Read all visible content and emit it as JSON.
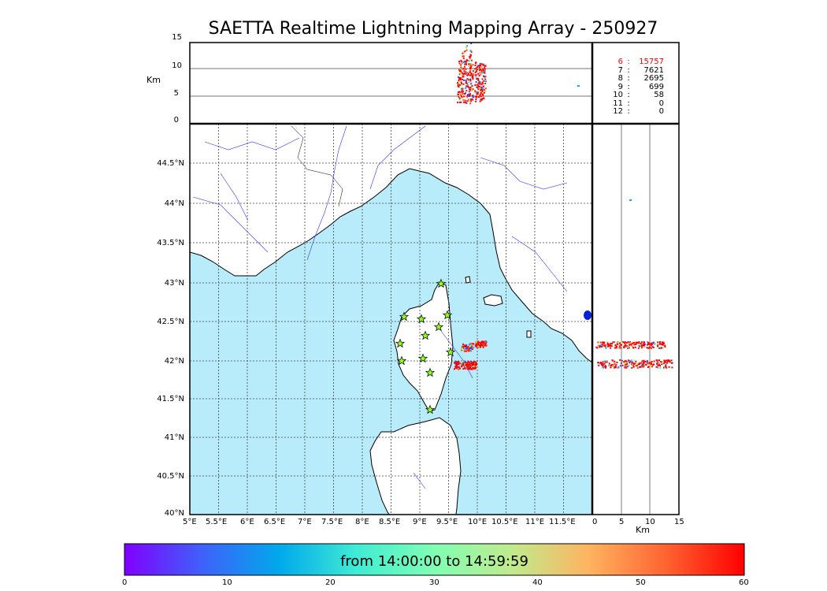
{
  "title": "SAETTA Realtime Lightning Mapping Array - 250927",
  "altitude_panel": {
    "unit_label": "Km",
    "ticks": [
      "15",
      "10",
      "5",
      "0"
    ]
  },
  "lat_ticks": [
    "44.5°N",
    "44°N",
    "43.5°N",
    "43°N",
    "42.5°N",
    "42°N",
    "41.5°N",
    "41°N",
    "40.5°N",
    "40°N"
  ],
  "lon_ticks": [
    "5°E",
    "5.5°E",
    "6°E",
    "6.5°E",
    "7°E",
    "7.5°E",
    "8°E",
    "8.5°E",
    "9°E",
    "9.5°E",
    "10°E",
    "10.5°E",
    "11°E",
    "11.5°E"
  ],
  "side_panel": {
    "unit_label": "Km",
    "ticks": [
      "0",
      "5",
      "10",
      "15"
    ]
  },
  "stations_table": [
    {
      "level": "6",
      "sep": ":",
      "count": "15757",
      "color": "#ff0000"
    },
    {
      "level": "7",
      "sep": ":",
      "count": "7621",
      "color": "#000000"
    },
    {
      "level": "8",
      "sep": ":",
      "count": "2695",
      "color": "#000000"
    },
    {
      "level": "9",
      "sep": ":",
      "count": "699",
      "color": "#000000"
    },
    {
      "level": "10",
      "sep": ":",
      "count": "58",
      "color": "#000000"
    },
    {
      "level": "11",
      "sep": ":",
      "count": "0",
      "color": "#000000"
    },
    {
      "level": "12",
      "sep": ":",
      "count": "0",
      "color": "#000000"
    }
  ],
  "colorbar": {
    "label": "from 14:00:00 to 14:59:59",
    "ticks": [
      "0",
      "10",
      "20",
      "30",
      "40",
      "50",
      "60"
    ],
    "colors": [
      "#7f00ff",
      "#3f61fa",
      "#00a9eb",
      "#40ecd4",
      "#80feb3",
      "#c0eb8d",
      "#ffb360",
      "#ff6230",
      "#ff0000"
    ]
  },
  "colors": {
    "sea": "#b8ecfb",
    "land": "#ffffff",
    "river": "#3333ff",
    "station_marker": "#8cff1a"
  }
}
